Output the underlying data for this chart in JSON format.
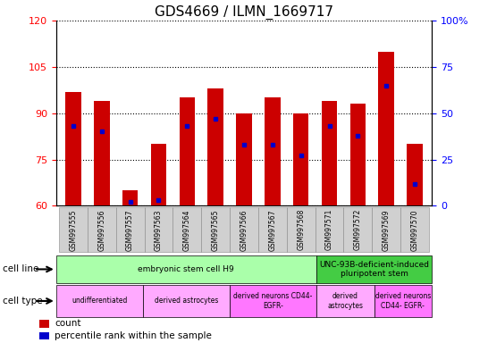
{
  "title": "GDS4669 / ILMN_1669717",
  "samples": [
    "GSM997555",
    "GSM997556",
    "GSM997557",
    "GSM997563",
    "GSM997564",
    "GSM997565",
    "GSM997566",
    "GSM997567",
    "GSM997568",
    "GSM997571",
    "GSM997572",
    "GSM997569",
    "GSM997570"
  ],
  "counts": [
    97,
    94,
    65,
    80,
    95,
    98,
    90,
    95,
    90,
    94,
    93,
    110,
    80
  ],
  "percentiles": [
    43,
    40,
    2,
    3,
    43,
    47,
    33,
    33,
    27,
    43,
    38,
    65,
    12
  ],
  "ylim_left": [
    60,
    120
  ],
  "ylim_right": [
    0,
    100
  ],
  "yticks_left": [
    60,
    75,
    90,
    105,
    120
  ],
  "yticks_right": [
    0,
    25,
    50,
    75,
    100
  ],
  "bar_color": "#cc0000",
  "marker_color": "#0000cc",
  "plot_bg": "#ffffff",
  "tick_bg": "#d0d0d0",
  "cell_line_groups": [
    {
      "text": "embryonic stem cell H9",
      "start": 0,
      "end": 9,
      "color": "#aaffaa"
    },
    {
      "text": "UNC-93B-deficient-induced\npluripotent stem",
      "start": 9,
      "end": 13,
      "color": "#44cc44"
    }
  ],
  "cell_type_groups": [
    {
      "text": "undifferentiated",
      "start": 0,
      "end": 3,
      "color": "#ffaaff"
    },
    {
      "text": "derived astrocytes",
      "start": 3,
      "end": 6,
      "color": "#ffaaff"
    },
    {
      "text": "derived neurons CD44-\nEGFR-",
      "start": 6,
      "end": 9,
      "color": "#ff77ff"
    },
    {
      "text": "derived\nastrocytes",
      "start": 9,
      "end": 11,
      "color": "#ffaaff"
    },
    {
      "text": "derived neurons\nCD44- EGFR-",
      "start": 11,
      "end": 13,
      "color": "#ff77ff"
    }
  ],
  "legend_items": [
    {
      "color": "#cc0000",
      "label": "count"
    },
    {
      "color": "#0000cc",
      "label": "percentile rank within the sample"
    }
  ]
}
